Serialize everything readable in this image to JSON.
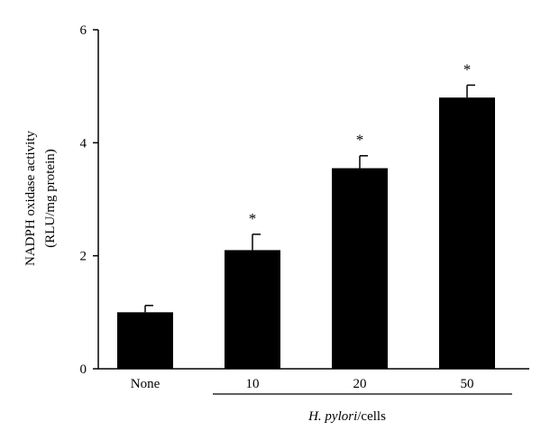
{
  "chart_data": {
    "type": "bar",
    "categories": [
      "None",
      "10",
      "20",
      "50"
    ],
    "values": [
      1.0,
      2.1,
      3.55,
      4.8
    ],
    "errors": [
      0.12,
      0.28,
      0.22,
      0.22
    ],
    "annotations": [
      "",
      "*",
      "*",
      "*"
    ],
    "ylabel_line1": "NADPH oxidase activity",
    "ylabel_line2": "(RLU/mg protein)",
    "xlabel_italic": "H. pylori",
    "xlabel_rest": "/cells",
    "ylim": [
      0,
      6
    ],
    "yticks": [
      "0",
      "2",
      "4",
      "6"
    ],
    "bar_color": "#000000",
    "grid": false,
    "legend": "none"
  }
}
